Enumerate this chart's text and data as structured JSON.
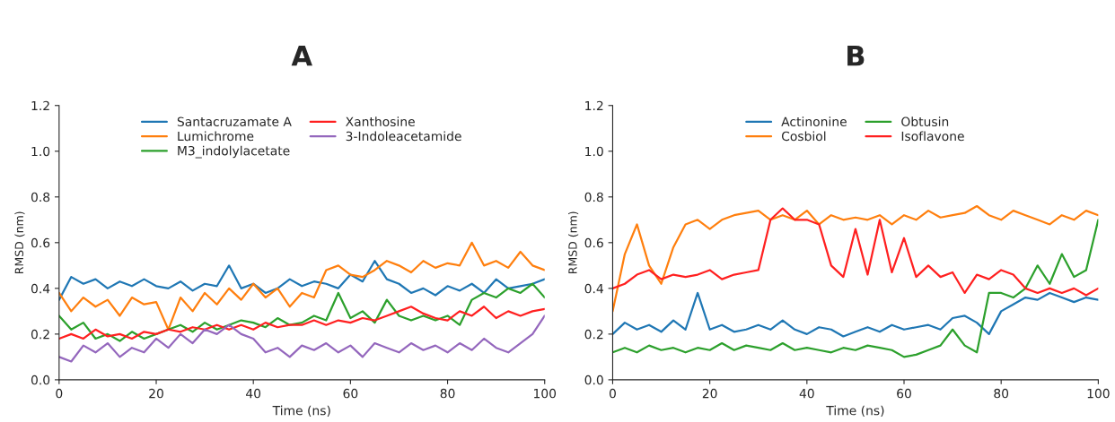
{
  "chart_data": [
    {
      "type": "line",
      "title": "A",
      "xlabel": "Time (ns)",
      "ylabel": "RMSD (nm)",
      "xlim": [
        0,
        100
      ],
      "ylim": [
        0,
        1.2
      ],
      "xticks": [
        0,
        20,
        40,
        60,
        80,
        100
      ],
      "yticks": [
        {
          "value": 0,
          "label": "0.0"
        },
        {
          "value": 0.2,
          "label": "0.2"
        },
        {
          "value": 0.4,
          "label": "0.4"
        },
        {
          "value": 0.6,
          "label": "0.6"
        },
        {
          "value": 0.8,
          "label": "0.8"
        },
        {
          "value": 1.0,
          "label": "1.0"
        },
        {
          "value": 1.2,
          "label": "1.2"
        }
      ],
      "x": [
        0,
        2.5,
        5,
        7.5,
        10,
        12.5,
        15,
        17.5,
        20,
        22.5,
        25,
        27.5,
        30,
        32.5,
        35,
        37.5,
        40,
        42.5,
        45,
        47.5,
        50,
        52.5,
        55,
        57.5,
        60,
        62.5,
        65,
        67.5,
        70,
        72.5,
        75,
        77.5,
        80,
        82.5,
        85,
        87.5,
        90,
        92.5,
        95,
        97.5,
        100
      ],
      "legend": "top",
      "grid": false,
      "marker": "none",
      "line_style": "solid",
      "series": [
        {
          "name": "Santacruzamate A",
          "color": "#1f77b4",
          "values": [
            0.35,
            0.45,
            0.42,
            0.44,
            0.4,
            0.43,
            0.41,
            0.44,
            0.41,
            0.4,
            0.43,
            0.39,
            0.42,
            0.41,
            0.5,
            0.4,
            0.42,
            0.38,
            0.4,
            0.44,
            0.41,
            0.43,
            0.42,
            0.4,
            0.46,
            0.43,
            0.52,
            0.44,
            0.42,
            0.38,
            0.4,
            0.37,
            0.41,
            0.39,
            0.42,
            0.38,
            0.44,
            0.4,
            0.41,
            0.42,
            0.44
          ]
        },
        {
          "name": "Lumichrome",
          "color": "#ff7f0e",
          "values": [
            0.38,
            0.3,
            0.36,
            0.32,
            0.35,
            0.28,
            0.36,
            0.33,
            0.34,
            0.22,
            0.36,
            0.3,
            0.38,
            0.33,
            0.4,
            0.35,
            0.42,
            0.36,
            0.4,
            0.32,
            0.38,
            0.36,
            0.48,
            0.5,
            0.46,
            0.45,
            0.48,
            0.52,
            0.5,
            0.47,
            0.52,
            0.49,
            0.51,
            0.5,
            0.6,
            0.5,
            0.52,
            0.49,
            0.56,
            0.5,
            0.48
          ]
        },
        {
          "name": "M3_indolylacetate",
          "color": "#2ca02c",
          "values": [
            0.28,
            0.22,
            0.25,
            0.18,
            0.2,
            0.17,
            0.21,
            0.18,
            0.2,
            0.22,
            0.24,
            0.21,
            0.25,
            0.22,
            0.24,
            0.26,
            0.25,
            0.23,
            0.27,
            0.24,
            0.25,
            0.28,
            0.26,
            0.38,
            0.27,
            0.3,
            0.25,
            0.35,
            0.28,
            0.26,
            0.28,
            0.26,
            0.28,
            0.24,
            0.35,
            0.38,
            0.36,
            0.4,
            0.38,
            0.42,
            0.36
          ]
        },
        {
          "name": "Xanthosine",
          "color": "#ff2020",
          "values": [
            0.18,
            0.2,
            0.18,
            0.22,
            0.19,
            0.2,
            0.18,
            0.21,
            0.2,
            0.22,
            0.21,
            0.23,
            0.22,
            0.24,
            0.22,
            0.24,
            0.22,
            0.25,
            0.23,
            0.24,
            0.24,
            0.26,
            0.24,
            0.26,
            0.25,
            0.27,
            0.26,
            0.28,
            0.3,
            0.32,
            0.29,
            0.27,
            0.26,
            0.3,
            0.28,
            0.32,
            0.27,
            0.3,
            0.28,
            0.3,
            0.31
          ]
        },
        {
          "name": "3-Indoleacetamide",
          "color": "#9467bd",
          "values": [
            0.1,
            0.08,
            0.15,
            0.12,
            0.16,
            0.1,
            0.14,
            0.12,
            0.18,
            0.14,
            0.2,
            0.16,
            0.22,
            0.2,
            0.24,
            0.2,
            0.18,
            0.12,
            0.14,
            0.1,
            0.15,
            0.13,
            0.16,
            0.12,
            0.15,
            0.1,
            0.16,
            0.14,
            0.12,
            0.16,
            0.13,
            0.15,
            0.12,
            0.16,
            0.13,
            0.18,
            0.14,
            0.12,
            0.16,
            0.2,
            0.28
          ]
        }
      ]
    },
    {
      "type": "line",
      "title": "B",
      "xlabel": "Time (ns)",
      "ylabel": "RMSD (nm)",
      "xlim": [
        0,
        100
      ],
      "ylim": [
        0,
        1.2
      ],
      "xticks": [
        0,
        20,
        40,
        60,
        80,
        100
      ],
      "yticks": [
        {
          "value": 0,
          "label": "0.0"
        },
        {
          "value": 0.2,
          "label": "0.2"
        },
        {
          "value": 0.4,
          "label": "0.4"
        },
        {
          "value": 0.6,
          "label": "0.6"
        },
        {
          "value": 0.8,
          "label": "0.8"
        },
        {
          "value": 1.0,
          "label": "1.0"
        },
        {
          "value": 1.2,
          "label": "1.2"
        }
      ],
      "x": [
        0,
        2.5,
        5,
        7.5,
        10,
        12.5,
        15,
        17.5,
        20,
        22.5,
        25,
        27.5,
        30,
        32.5,
        35,
        37.5,
        40,
        42.5,
        45,
        47.5,
        50,
        52.5,
        55,
        57.5,
        60,
        62.5,
        65,
        67.5,
        70,
        72.5,
        75,
        77.5,
        80,
        82.5,
        85,
        87.5,
        90,
        92.5,
        95,
        97.5,
        100
      ],
      "legend": "top",
      "grid": false,
      "marker": "none",
      "line_style": "solid",
      "series": [
        {
          "name": "Actinonine",
          "color": "#1f77b4",
          "values": [
            0.2,
            0.25,
            0.22,
            0.24,
            0.21,
            0.26,
            0.22,
            0.38,
            0.22,
            0.24,
            0.21,
            0.22,
            0.24,
            0.22,
            0.26,
            0.22,
            0.2,
            0.23,
            0.22,
            0.19,
            0.21,
            0.23,
            0.21,
            0.24,
            0.22,
            0.23,
            0.24,
            0.22,
            0.27,
            0.28,
            0.25,
            0.2,
            0.3,
            0.33,
            0.36,
            0.35,
            0.38,
            0.36,
            0.34,
            0.36,
            0.35
          ]
        },
        {
          "name": "Cosbiol",
          "color": "#ff7f0e",
          "values": [
            0.3,
            0.55,
            0.68,
            0.5,
            0.42,
            0.58,
            0.68,
            0.7,
            0.66,
            0.7,
            0.72,
            0.73,
            0.74,
            0.7,
            0.72,
            0.7,
            0.74,
            0.68,
            0.72,
            0.7,
            0.71,
            0.7,
            0.72,
            0.68,
            0.72,
            0.7,
            0.74,
            0.71,
            0.72,
            0.73,
            0.76,
            0.72,
            0.7,
            0.74,
            0.72,
            0.7,
            0.68,
            0.72,
            0.7,
            0.74,
            0.72
          ]
        },
        {
          "name": "Obtusin",
          "color": "#2ca02c",
          "values": [
            0.12,
            0.14,
            0.12,
            0.15,
            0.13,
            0.14,
            0.12,
            0.14,
            0.13,
            0.16,
            0.13,
            0.15,
            0.14,
            0.13,
            0.16,
            0.13,
            0.14,
            0.13,
            0.12,
            0.14,
            0.13,
            0.15,
            0.14,
            0.13,
            0.1,
            0.11,
            0.13,
            0.15,
            0.22,
            0.15,
            0.12,
            0.38,
            0.38,
            0.36,
            0.4,
            0.5,
            0.42,
            0.55,
            0.45,
            0.48,
            0.7
          ]
        },
        {
          "name": "Isoflavone",
          "color": "#ff2020",
          "values": [
            0.4,
            0.42,
            0.46,
            0.48,
            0.44,
            0.46,
            0.45,
            0.46,
            0.48,
            0.44,
            0.46,
            0.47,
            0.48,
            0.7,
            0.75,
            0.7,
            0.7,
            0.68,
            0.5,
            0.45,
            0.66,
            0.46,
            0.7,
            0.47,
            0.62,
            0.45,
            0.5,
            0.45,
            0.47,
            0.38,
            0.46,
            0.44,
            0.48,
            0.46,
            0.4,
            0.38,
            0.4,
            0.38,
            0.4,
            0.37,
            0.4
          ]
        }
      ]
    }
  ]
}
